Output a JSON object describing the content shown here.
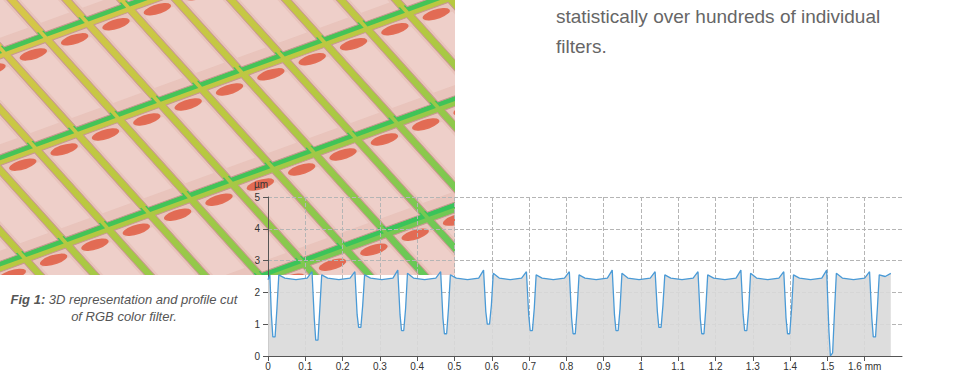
{
  "text": [
    "statistically over hundreds of individual",
    "filters."
  ],
  "caption": {
    "label": "Fig 1:",
    "text": "3D representation and profile cut of RGB color filter."
  },
  "chart_data": {
    "type": "line",
    "ylabel": "µm",
    "color": "#4a9ad6",
    "grid": true,
    "xlim": [
      0,
      1.7
    ],
    "xticks": [
      0,
      0.1,
      0.2,
      0.3,
      0.4,
      0.5,
      0.6,
      0.7,
      0.8,
      0.9,
      1,
      1.1,
      1.2,
      1.3,
      1.4,
      1.5,
      {
        "value": 1.6,
        "label": "1.6 mm"
      }
    ],
    "ylim": [
      0,
      5
    ],
    "yticks": [
      0,
      1,
      2,
      3,
      4,
      5
    ],
    "x": [
      0,
      0.005,
      0.009,
      0.013,
      0.019,
      0.024,
      0.029,
      0.045,
      0.075,
      0.105,
      0.118,
      0.124,
      0.128,
      0.134,
      0.139,
      0.144,
      0.16,
      0.19,
      0.22,
      0.233,
      0.239,
      0.243,
      0.249,
      0.254,
      0.259,
      0.275,
      0.305,
      0.335,
      0.348,
      0.354,
      0.358,
      0.364,
      0.369,
      0.374,
      0.39,
      0.42,
      0.45,
      0.463,
      0.469,
      0.473,
      0.479,
      0.484,
      0.489,
      0.505,
      0.535,
      0.565,
      0.578,
      0.584,
      0.588,
      0.594,
      0.599,
      0.604,
      0.62,
      0.65,
      0.68,
      0.693,
      0.699,
      0.703,
      0.709,
      0.714,
      0.719,
      0.735,
      0.765,
      0.795,
      0.808,
      0.814,
      0.818,
      0.824,
      0.829,
      0.834,
      0.85,
      0.88,
      0.91,
      0.923,
      0.929,
      0.933,
      0.939,
      0.944,
      0.949,
      0.965,
      0.995,
      1.025,
      1.038,
      1.044,
      1.048,
      1.054,
      1.059,
      1.064,
      1.08,
      1.11,
      1.14,
      1.153,
      1.159,
      1.163,
      1.169,
      1.174,
      1.179,
      1.195,
      1.225,
      1.255,
      1.268,
      1.274,
      1.278,
      1.284,
      1.289,
      1.294,
      1.31,
      1.34,
      1.37,
      1.383,
      1.389,
      1.393,
      1.399,
      1.404,
      1.409,
      1.425,
      1.455,
      1.485,
      1.498,
      1.504,
      1.508,
      1.514,
      1.519,
      1.524,
      1.54,
      1.57,
      1.6,
      1.613,
      1.619,
      1.623,
      1.629,
      1.634,
      1.639,
      1.655,
      1.67
    ],
    "values": [
      2.4,
      2.55,
      1.3,
      0.6,
      0.6,
      1.5,
      2.55,
      2.45,
      2.4,
      2.45,
      2.65,
      1.2,
      0.5,
      0.5,
      1.5,
      2.55,
      2.45,
      2.4,
      2.45,
      2.65,
      1.3,
      0.9,
      0.9,
      1.6,
      2.55,
      2.45,
      2.4,
      2.45,
      2.7,
      1.3,
      0.8,
      0.8,
      1.5,
      2.6,
      2.45,
      2.4,
      2.45,
      2.65,
      1.2,
      0.7,
      0.7,
      1.5,
      2.55,
      2.45,
      2.4,
      2.45,
      2.7,
      1.4,
      1.0,
      1.0,
      1.6,
      2.6,
      2.45,
      2.4,
      2.45,
      2.65,
      1.3,
      0.8,
      0.8,
      1.5,
      2.55,
      2.45,
      2.4,
      2.45,
      2.65,
      1.2,
      0.7,
      0.7,
      1.5,
      2.55,
      2.45,
      2.4,
      2.45,
      2.7,
      1.3,
      0.8,
      0.8,
      1.5,
      2.6,
      2.45,
      2.4,
      2.45,
      2.65,
      1.4,
      0.9,
      0.9,
      1.6,
      2.55,
      2.45,
      2.4,
      2.45,
      2.65,
      1.2,
      0.7,
      0.7,
      1.5,
      2.55,
      2.45,
      2.4,
      2.45,
      2.7,
      1.3,
      0.8,
      0.8,
      1.5,
      2.6,
      2.45,
      2.4,
      2.45,
      2.65,
      1.2,
      0.7,
      0.7,
      1.5,
      2.55,
      2.45,
      2.4,
      2.45,
      2.7,
      0.8,
      0.0,
      0.1,
      1.4,
      2.6,
      2.45,
      2.4,
      2.45,
      2.65,
      1.2,
      0.6,
      0.6,
      1.5,
      2.55,
      2.5,
      2.6
    ]
  }
}
